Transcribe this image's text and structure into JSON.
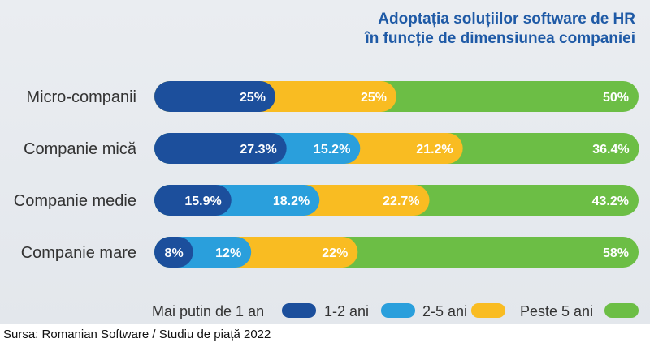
{
  "title_lines": [
    "Adoptația soluțiilor software de HR",
    "în funcție de dimensiunea companiei"
  ],
  "source": "Sursa: Romanian Software / Studiu de piață 2022",
  "colors": {
    "lt1": "#1c4f9c",
    "y1_2": "#2a9fdc",
    "y2_5": "#f9bc22",
    "gt5": "#6cbe45",
    "label": "#333333",
    "title": "#1f5aa6"
  },
  "chart_data": {
    "type": "bar",
    "orientation": "horizontal",
    "stacked": true,
    "percent": true,
    "title": "Adoptația soluțiilor software de HR în funcție de dimensiunea companiei",
    "categories": [
      "Micro-companii",
      "Companie mică",
      "Companie medie",
      "Companie mare"
    ],
    "series": [
      {
        "name": "Mai putin de 1 an",
        "color": "#1c4f9c",
        "values": [
          25,
          27.3,
          15.9,
          8
        ],
        "labels": [
          "25%",
          "27.3%",
          "15.9%",
          "8%"
        ]
      },
      {
        "name": "1-2 ani",
        "color": "#2a9fdc",
        "values": [
          0,
          15.2,
          18.2,
          12
        ],
        "labels": [
          "",
          "15.2%",
          "18.2%",
          "12%"
        ]
      },
      {
        "name": "2-5 ani",
        "color": "#f9bc22",
        "values": [
          25,
          21.2,
          22.7,
          22
        ],
        "labels": [
          "25%",
          "21.2%",
          "22.7%",
          "22%"
        ]
      },
      {
        "name": "Peste 5 ani",
        "color": "#6cbe45",
        "values": [
          50,
          36.4,
          43.2,
          58
        ],
        "labels": [
          "50%",
          "36.4%",
          "43.2%",
          "58%"
        ]
      }
    ],
    "xlim": [
      0,
      100
    ],
    "legend": "bottom"
  }
}
